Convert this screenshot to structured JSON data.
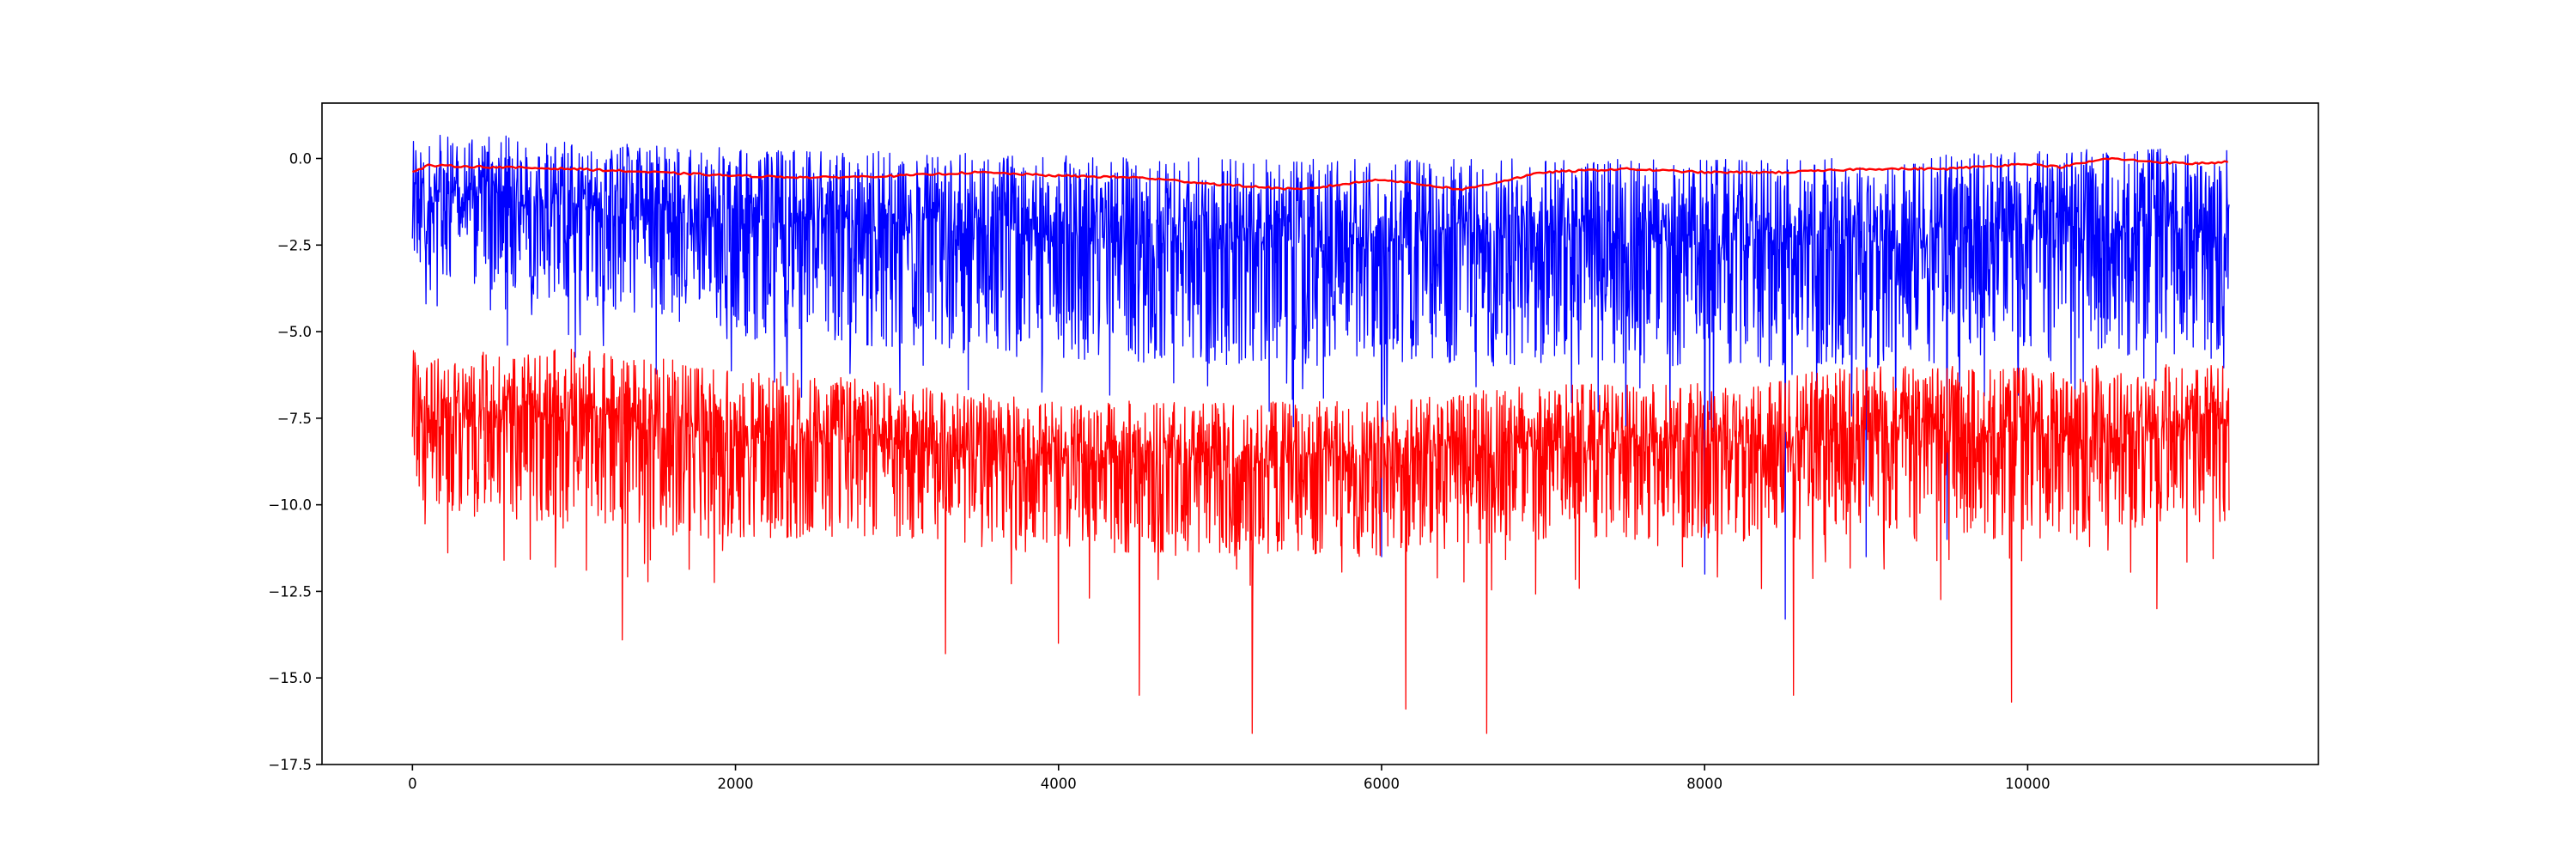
{
  "chart_data": {
    "type": "line",
    "title": "",
    "xlabel": "",
    "ylabel": "",
    "xlim": [
      -560,
      11800
    ],
    "ylim": [
      -17.5,
      1.6
    ],
    "x_ticks": [
      0,
      2000,
      4000,
      6000,
      8000,
      10000
    ],
    "x_tick_labels": [
      "0",
      "2000",
      "4000",
      "6000",
      "8000",
      "10000"
    ],
    "y_ticks": [
      0.0,
      -2.5,
      -5.0,
      -7.5,
      -10.0,
      -12.5,
      -15.0,
      -17.5
    ],
    "y_tick_labels": [
      "0.0",
      "−2.5",
      "−5.0",
      "−7.5",
      "−10.0",
      "−12.5",
      "−15.0",
      "−17.5"
    ],
    "grid": false,
    "legend": "none",
    "x_count": 11250,
    "series": [
      {
        "color": "#0000ff",
        "style": "noisy line",
        "x": [
          0,
          500,
          1000,
          2000,
          3000,
          4000,
          5000,
          6000,
          7000,
          8000,
          9000,
          10000,
          11250
        ],
        "typical_range_low": [
          -3.2,
          -3.8,
          -4.2,
          -5.0,
          -5.5,
          -5.8,
          -6.0,
          -6.0,
          -6.0,
          -6.0,
          -6.0,
          -5.8,
          -5.6
        ],
        "typical_range_high": [
          0.7,
          0.7,
          0.5,
          0.3,
          0.2,
          0.1,
          0.0,
          0.0,
          0.0,
          0.0,
          0.0,
          0.2,
          0.4
        ],
        "extreme_low_points": [
          [
            6000,
            -11.5
          ],
          [
            8000,
            -12.0
          ],
          [
            8500,
            -13.3
          ],
          [
            9000,
            -11.5
          ],
          [
            9500,
            -11.0
          ]
        ]
      },
      {
        "color": "#ff0000",
        "style": "noisy line",
        "x": [
          0,
          500,
          1000,
          2000,
          3000,
          4000,
          5000,
          6000,
          7000,
          8000,
          9000,
          10000,
          11250
        ],
        "typical_range_low": [
          -10.0,
          -10.5,
          -10.5,
          -11.0,
          -11.0,
          -11.5,
          -11.5,
          -11.5,
          -11.0,
          -11.0,
          -11.0,
          -11.0,
          -10.5
        ],
        "typical_range_high": [
          -5.5,
          -5.5,
          -5.5,
          -6.0,
          -6.5,
          -7.0,
          -7.0,
          -7.0,
          -6.5,
          -6.5,
          -6.0,
          -6.0,
          -5.8
        ],
        "extreme_low_points": [
          [
            1300,
            -13.9
          ],
          [
            3300,
            -14.3
          ],
          [
            4000,
            -14.0
          ],
          [
            4500,
            -15.5
          ],
          [
            5200,
            -16.6
          ],
          [
            6150,
            -15.9
          ],
          [
            6650,
            -16.6
          ],
          [
            8550,
            -15.5
          ],
          [
            9900,
            -15.7
          ],
          [
            10800,
            -13.0
          ]
        ]
      },
      {
        "color": "#ff0000",
        "style": "smooth line",
        "x": [
          0,
          100,
          500,
          1000,
          1500,
          2000,
          2500,
          3000,
          3500,
          4000,
          4500,
          5000,
          5500,
          6000,
          6500,
          7000,
          7500,
          8000,
          8500,
          9000,
          9500,
          10000,
          10200,
          10500,
          10800,
          11000,
          11250
        ],
        "y": [
          -0.4,
          -0.2,
          -0.25,
          -0.3,
          -0.4,
          -0.5,
          -0.55,
          -0.5,
          -0.4,
          -0.5,
          -0.55,
          -0.75,
          -0.9,
          -0.6,
          -0.9,
          -0.4,
          -0.3,
          -0.4,
          -0.4,
          -0.3,
          -0.3,
          -0.15,
          -0.25,
          0.0,
          -0.1,
          -0.15,
          -0.1
        ]
      }
    ]
  }
}
